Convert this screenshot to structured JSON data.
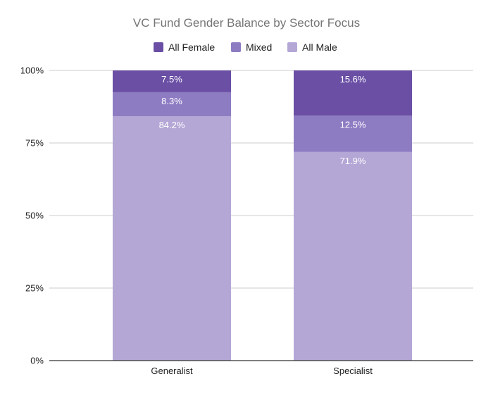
{
  "chart_data": {
    "type": "bar",
    "stacked": true,
    "percent": true,
    "title": "VC Fund Gender Balance by Sector Focus",
    "xlabel": "",
    "ylabel": "",
    "categories": [
      "Generalist",
      "Specialist"
    ],
    "series": [
      {
        "name": "All Female",
        "color": "#6a4fa5",
        "values": [
          7.5,
          15.6
        ],
        "labels": [
          "7.5%",
          "15.6%"
        ]
      },
      {
        "name": "Mixed",
        "color": "#8e7cc3",
        "values": [
          8.3,
          12.5
        ],
        "labels": [
          "8.3%",
          "12.5%"
        ]
      },
      {
        "name": "All Male",
        "color": "#b4a7d6",
        "values": [
          84.2,
          71.9
        ],
        "labels": [
          "84.2%",
          "71.9%"
        ]
      }
    ],
    "stack_order_bottom_to_top": [
      "All Male",
      "Mixed",
      "All Female"
    ],
    "ylim": [
      0,
      100
    ],
    "yticks": [
      0,
      25,
      50,
      75,
      100
    ],
    "ytick_labels": [
      "0%",
      "25%",
      "50%",
      "75%",
      "100%"
    ],
    "legend_position": "top",
    "grid": true
  }
}
